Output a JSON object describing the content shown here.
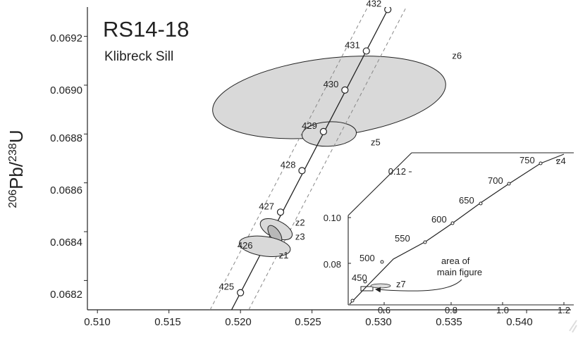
{
  "chart_data": {
    "type": "scatter",
    "title": "RS14-18",
    "subtitle": "Klibreck Sill",
    "ylabel": {
      "pre": "206",
      "mid": "Pb/",
      "sup2": "238",
      "post": "U"
    },
    "xlim": [
      0.5093,
      0.5431
    ],
    "ylim": [
      0.06808,
      0.06932
    ],
    "xticks": [
      "0.510",
      "0.515",
      "0.520",
      "0.525",
      "0.530",
      "0.535",
      "0.540"
    ],
    "yticks": [
      "0.0682",
      "0.0684",
      "0.0686",
      "0.0688",
      "0.0690",
      "0.0692"
    ],
    "concordia": [
      {
        "label": "425",
        "x": 0.52,
        "y": 0.06815
      },
      {
        "label": "426",
        "x": 0.5213,
        "y": 0.06832
      },
      {
        "label": "427",
        "x": 0.5228,
        "y": 0.06848
      },
      {
        "label": "428",
        "x": 0.5243,
        "y": 0.06865
      },
      {
        "label": "429",
        "x": 0.5258,
        "y": 0.06881
      },
      {
        "label": "430",
        "x": 0.5273,
        "y": 0.06898
      },
      {
        "label": "431",
        "x": 0.5288,
        "y": 0.06914
      },
      {
        "label": "432",
        "x": 0.5303,
        "y": 0.06931
      }
    ],
    "ellipses": [
      {
        "label": "z6",
        "cx": 0.5262,
        "cy": 0.06895,
        "rx": 0.0082,
        "ry": 0.00016,
        "angle": 7
      },
      {
        "label": "z5",
        "cx": 0.5262,
        "cy": 0.0688,
        "rx": 0.0019,
        "ry": 5e-05,
        "angle": 3
      },
      {
        "label": "z2",
        "cx": 0.5225,
        "cy": 0.06841,
        "rx": 0.0012,
        "ry": 3.5e-05,
        "angle": -25
      },
      {
        "label": "z3",
        "cx": 0.5224,
        "cy": 0.06839,
        "rx": 0.0007,
        "ry": 2e-05,
        "angle": -55
      },
      {
        "label": "z1",
        "cx": 0.5217,
        "cy": 0.06834,
        "rx": 0.0018,
        "ry": 4e-05,
        "angle": -8
      }
    ],
    "inset": {
      "x_ticks": [
        "0.6",
        "0.8",
        "1.0",
        "1.2"
      ],
      "y_ticks": [
        "0.08",
        "0.10",
        "0.12"
      ],
      "concordia": [
        "450",
        "500",
        "550",
        "600",
        "650",
        "700",
        "750"
      ],
      "labels": [
        "z7",
        "z4"
      ],
      "note": "area of\nmain figure"
    }
  }
}
